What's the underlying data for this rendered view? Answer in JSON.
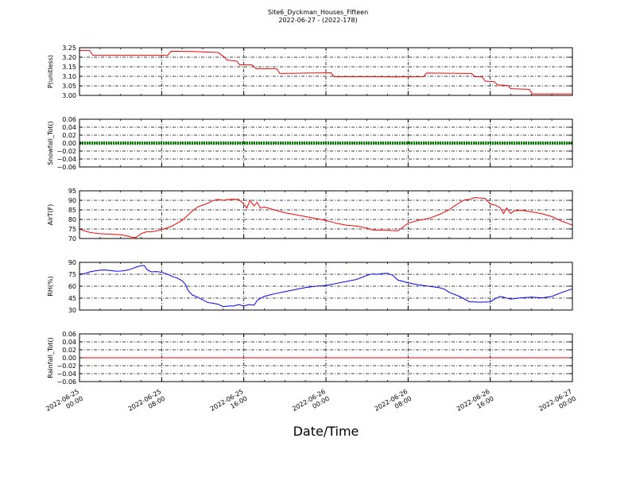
{
  "chart_data": [
    {
      "type": "line",
      "title": "Site6_Dyckman_Houses_Fifteen",
      "subtitle": "2022-06-27 - (2022-178)",
      "xlabel": "Date/Time",
      "x_range": [
        "2022-06-25 00:00",
        "2022-06-27 00:00"
      ],
      "x_ticks": [
        "2022-06-25 00:00",
        "2022-06-25 08:00",
        "2022-06-25 16:00",
        "2022-06-26 00:00",
        "2022-06-26 08:00",
        "2022-06-26 16:00",
        "2022-06-27 00:00"
      ],
      "grid": true,
      "panels": [
        {
          "ylabel": "P(unitless)",
          "ylim": [
            3.0,
            3.25
          ],
          "yticks": [
            "3.00",
            "3.05",
            "3.10",
            "3.15",
            "3.20",
            "3.25"
          ],
          "series": [
            {
              "color": "#ff0000",
              "points": [
                [
                  0,
                  3.235
                ],
                [
                  1.0,
                  3.235
                ],
                [
                  1.3,
                  3.21
                ],
                [
                  4.0,
                  3.21
                ],
                [
                  6.0,
                  3.21
                ],
                [
                  8.6,
                  3.21
                ],
                [
                  8.9,
                  3.232
                ],
                [
                  11.0,
                  3.23
                ],
                [
                  13.5,
                  3.225
                ],
                [
                  14.0,
                  3.205
                ],
                [
                  14.4,
                  3.185
                ],
                [
                  15.3,
                  3.18
                ],
                [
                  15.6,
                  3.16
                ],
                [
                  16.8,
                  3.16
                ],
                [
                  17.2,
                  3.14
                ],
                [
                  19.2,
                  3.14
                ],
                [
                  19.5,
                  3.115
                ],
                [
                  22.0,
                  3.117
                ],
                [
                  24.5,
                  3.118
                ],
                [
                  24.8,
                  3.098
                ],
                [
                  27.0,
                  3.098
                ],
                [
                  29.0,
                  3.098
                ],
                [
                  31.0,
                  3.097
                ],
                [
                  33.5,
                  3.098
                ],
                [
                  33.8,
                  3.117
                ],
                [
                  38.2,
                  3.115
                ],
                [
                  38.5,
                  3.098
                ],
                [
                  39.2,
                  3.098
                ],
                [
                  39.5,
                  3.075
                ],
                [
                  40.4,
                  3.072
                ],
                [
                  40.7,
                  3.055
                ],
                [
                  41.7,
                  3.052
                ],
                [
                  42.0,
                  3.035
                ],
                [
                  43.8,
                  3.032
                ],
                [
                  44.1,
                  3.008
                ],
                [
                  46.0,
                  3.008
                ],
                [
                  48.0,
                  3.008
                ]
              ]
            }
          ]
        },
        {
          "ylabel": "Snowfall_Tot()",
          "ylim": [
            -0.06,
            0.06
          ],
          "yticks": [
            "−0.06",
            "−0.04",
            "−0.02",
            "0.00",
            "0.02",
            "0.04",
            "0.06"
          ],
          "series": [
            {
              "color": "#008000",
              "style": "dotted-thick",
              "points": [
                [
                  0,
                  0.0
                ],
                [
                  48,
                  0.0
                ]
              ]
            }
          ]
        },
        {
          "ylabel": "AirT(F)",
          "ylim": [
            70,
            95
          ],
          "yticks": [
            "70",
            "75",
            "80",
            "85",
            "90",
            "95"
          ],
          "series": [
            {
              "color": "#ff0000",
              "points": [
                [
                  0,
                  75
                ],
                [
                  0.5,
                  74
                ],
                [
                  1,
                  73.2
                ],
                [
                  2,
                  72.5
                ],
                [
                  3,
                  72.3
                ],
                [
                  4,
                  72
                ],
                [
                  4.5,
                  71.5
                ],
                [
                  5,
                  70.8
                ],
                [
                  5.5,
                  70.5
                ],
                [
                  6,
                  72.5
                ],
                [
                  6.5,
                  73.5
                ],
                [
                  7,
                  73.5
                ],
                [
                  8,
                  74.5
                ],
                [
                  9,
                  76.5
                ],
                [
                  10,
                  79.5
                ],
                [
                  10.5,
                  82
                ],
                [
                  11,
                  84.5
                ],
                [
                  11.5,
                  86.5
                ],
                [
                  12,
                  87.5
                ],
                [
                  12.5,
                  88.5
                ],
                [
                  13,
                  89.8
                ],
                [
                  13.5,
                  90.5
                ],
                [
                  14,
                  90
                ],
                [
                  14.5,
                  90.5
                ],
                [
                  15,
                  90.6
                ],
                [
                  15.5,
                  90.5
                ],
                [
                  16,
                  88
                ],
                [
                  16.3,
                  86
                ],
                [
                  16.6,
                  90
                ],
                [
                  17,
                  87
                ],
                [
                  17.3,
                  89
                ],
                [
                  17.6,
                  86
                ],
                [
                  18,
                  86.5
                ],
                [
                  19,
                  85
                ],
                [
                  20,
                  83.5
                ],
                [
                  21,
                  82.5
                ],
                [
                  22,
                  81.5
                ],
                [
                  23,
                  80.5
                ],
                [
                  24,
                  79.5
                ],
                [
                  25,
                  78
                ],
                [
                  26,
                  77
                ],
                [
                  27,
                  76.5
                ],
                [
                  28,
                  75.5
                ],
                [
                  28.5,
                  74.5
                ],
                [
                  29,
                  74.3
                ],
                [
                  30,
                  74.3
                ],
                [
                  31,
                  74
                ],
                [
                  31.5,
                  76
                ],
                [
                  32,
                  78
                ],
                [
                  33,
                  79.5
                ],
                [
                  34,
                  80.5
                ],
                [
                  35,
                  82.5
                ],
                [
                  36,
                  85
                ],
                [
                  36.5,
                  87
                ],
                [
                  37,
                  88.8
                ],
                [
                  37.5,
                  90.2
                ],
                [
                  38,
                  90.5
                ],
                [
                  38.5,
                  91.5
                ],
                [
                  39,
                  91.2
                ],
                [
                  39.5,
                  91
                ],
                [
                  40,
                  88
                ],
                [
                  40.5,
                  87.5
                ],
                [
                  41,
                  86
                ],
                [
                  41.3,
                  83
                ],
                [
                  41.6,
                  86
                ],
                [
                  42,
                  83
                ],
                [
                  42.3,
                  84.5
                ],
                [
                  43,
                  84.8
                ],
                [
                  44,
                  84
                ],
                [
                  45,
                  83
                ],
                [
                  46,
                  81.5
                ],
                [
                  47,
                  79
                ],
                [
                  48,
                  77
                ]
              ]
            }
          ]
        },
        {
          "ylabel": "RH(%)",
          "ylim": [
            20,
            90
          ],
          "yticks": [
            "30",
            "45",
            "60",
            "75",
            "90"
          ],
          "series": [
            {
              "color": "#0000ff",
              "points": [
                [
                  0,
                  73
                ],
                [
                  0.5,
                  73.5
                ],
                [
                  1,
                  76
                ],
                [
                  1.5,
                  77.5
                ],
                [
                  2,
                  78.5
                ],
                [
                  2.5,
                  78.8
                ],
                [
                  3,
                  78
                ],
                [
                  3.5,
                  77
                ],
                [
                  4,
                  77.2
                ],
                [
                  4.5,
                  78.2
                ],
                [
                  5,
                  80
                ],
                [
                  5.5,
                  83
                ],
                [
                  6,
                  85
                ],
                [
                  6.3,
                  85.5
                ],
                [
                  6.6,
                  79
                ],
                [
                  7,
                  76
                ],
                [
                  7.5,
                  76.5
                ],
                [
                  8,
                  75.5
                ],
                [
                  8.5,
                  73
                ],
                [
                  9,
                  69.5
                ],
                [
                  9.5,
                  67
                ],
                [
                  10,
                  63
                ],
                [
                  10.3,
                  58
                ],
                [
                  10.6,
                  48
                ],
                [
                  11,
                  42
                ],
                [
                  11.5,
                  39
                ],
                [
                  12,
                  35
                ],
                [
                  12.5,
                  31
                ],
                [
                  13,
                  30
                ],
                [
                  13.5,
                  28.5
                ],
                [
                  14,
                  25
                ],
                [
                  14.5,
                  26
                ],
                [
                  15,
                  26
                ],
                [
                  15.5,
                  28
                ],
                [
                  16,
                  26
                ],
                [
                  16.5,
                  28
                ],
                [
                  17,
                  27
                ],
                [
                  17.3,
                  34
                ],
                [
                  17.6,
                  37
                ],
                [
                  18,
                  40
                ],
                [
                  18.5,
                  42
                ],
                [
                  19,
                  44
                ],
                [
                  20,
                  47
                ],
                [
                  21,
                  50
                ],
                [
                  22,
                  53
                ],
                [
                  23,
                  55
                ],
                [
                  24,
                  56
                ],
                [
                  25,
                  59
                ],
                [
                  26,
                  62
                ],
                [
                  27,
                  65
                ],
                [
                  27.5,
                  68
                ],
                [
                  28,
                  71
                ],
                [
                  28.5,
                  73
                ],
                [
                  29,
                  72.5
                ],
                [
                  29.5,
                  73.5
                ],
                [
                  30,
                  74
                ],
                [
                  30.5,
                  71
                ],
                [
                  31,
                  64
                ],
                [
                  31.5,
                  62
                ],
                [
                  32,
                  60
                ],
                [
                  33,
                  57
                ],
                [
                  34,
                  55
                ],
                [
                  35,
                  53
                ],
                [
                  35.5,
                  51
                ],
                [
                  36,
                  46
                ],
                [
                  37,
                  40
                ],
                [
                  38,
                  32
                ],
                [
                  38.5,
                  32
                ],
                [
                  39,
                  31.5
                ],
                [
                  40,
                  32
                ],
                [
                  40.5,
                  37
                ],
                [
                  41,
                  40
                ],
                [
                  41.5,
                  38
                ],
                [
                  42,
                  36
                ],
                [
                  42.5,
                  37
                ],
                [
                  43,
                  38
                ],
                [
                  44,
                  39
                ],
                [
                  45,
                  38
                ],
                [
                  46,
                  40
                ],
                [
                  47,
                  46
                ],
                [
                  48,
                  51
                ]
              ]
            }
          ]
        },
        {
          "ylabel": "Rainfall_Tot()",
          "ylim": [
            -0.06,
            0.06
          ],
          "yticks": [
            "−0.06",
            "−0.04",
            "−0.02",
            "0.00",
            "0.02",
            "0.04",
            "0.06"
          ],
          "series": [
            {
              "color": "#ff0000",
              "points": [
                [
                  0,
                  0.0
                ],
                [
                  48,
                  0.0
                ]
              ]
            }
          ]
        }
      ]
    }
  ]
}
